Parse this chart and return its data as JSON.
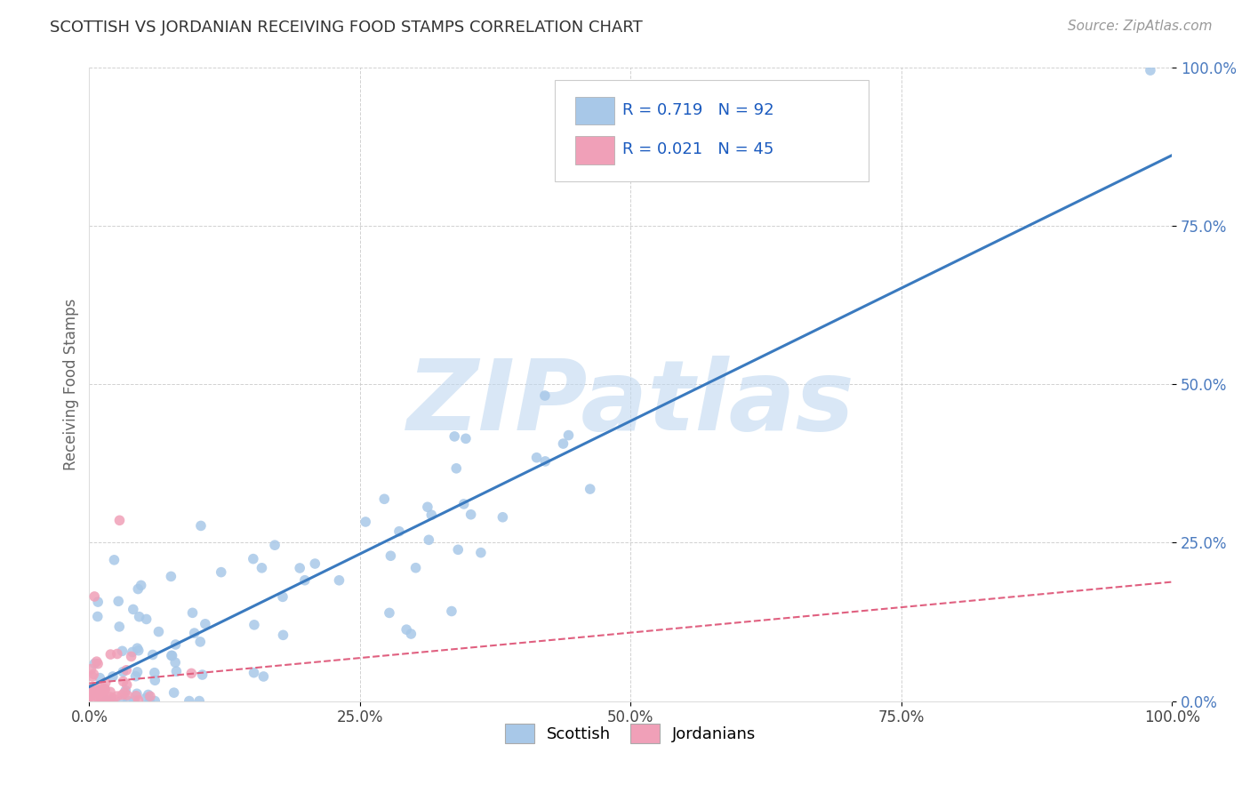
{
  "title": "SCOTTISH VS JORDANIAN RECEIVING FOOD STAMPS CORRELATION CHART",
  "source": "Source: ZipAtlas.com",
  "ylabel": "Receiving Food Stamps",
  "xlim": [
    0,
    1
  ],
  "ylim": [
    0,
    1
  ],
  "xticks": [
    0.0,
    0.25,
    0.5,
    0.75,
    1.0
  ],
  "yticks": [
    0.0,
    0.25,
    0.5,
    0.75,
    1.0
  ],
  "tick_labels": [
    "0.0%",
    "25.0%",
    "50.0%",
    "75.0%",
    "100.0%"
  ],
  "scottish_R": 0.719,
  "scottish_N": 92,
  "jordanian_R": 0.021,
  "jordanian_N": 45,
  "scottish_color": "#a8c8e8",
  "scottish_line_color": "#3a7abf",
  "jordanian_color": "#f0a0b8",
  "jordanian_line_color": "#e06080",
  "background_color": "#ffffff",
  "grid_color": "#cccccc",
  "title_color": "#333333",
  "watermark_text": "ZIPatlas",
  "watermark_color": "#c0d8f0",
  "tick_color": "#4a7abf",
  "legend_color": "#1a5abf",
  "source_color": "#999999"
}
